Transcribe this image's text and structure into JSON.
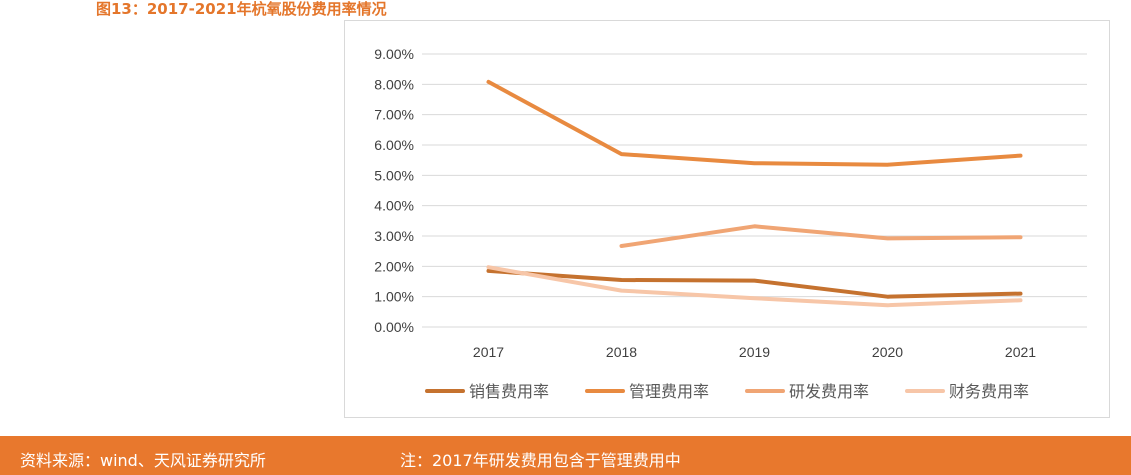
{
  "figure_title": "图13：2017-2021年杭氧股份费用率情况",
  "source_text": "资料来源：wind、天风证券研究所",
  "note_text": "注：2017年研发费用包含于管理费用中",
  "colors": {
    "title": "#e4762b",
    "footer_bg": "#e8782d",
    "grid": "#d9d9d9"
  },
  "chart_data": {
    "type": "line",
    "title": "",
    "xlabel": "",
    "ylabel": "",
    "x": [
      "2017",
      "2018",
      "2019",
      "2020",
      "2021"
    ],
    "ylim": [
      0,
      9
    ],
    "yticks": [
      "0.00%",
      "1.00%",
      "2.00%",
      "3.00%",
      "4.00%",
      "5.00%",
      "6.00%",
      "7.00%",
      "8.00%",
      "9.00%"
    ],
    "grid": true,
    "legend_position": "bottom",
    "series": [
      {
        "name": "销售费用率",
        "color": "#c5722f",
        "values": [
          1.85,
          1.55,
          1.53,
          1.0,
          1.1
        ]
      },
      {
        "name": "管理费用率",
        "color": "#e88a40",
        "values": [
          8.08,
          5.7,
          5.4,
          5.35,
          5.65
        ]
      },
      {
        "name": "研发费用率",
        "color": "#f0a574",
        "values": [
          null,
          2.67,
          3.32,
          2.92,
          2.96
        ]
      },
      {
        "name": "财务费用率",
        "color": "#f7c6a8",
        "values": [
          1.97,
          1.2,
          0.95,
          0.72,
          0.88
        ]
      }
    ]
  }
}
